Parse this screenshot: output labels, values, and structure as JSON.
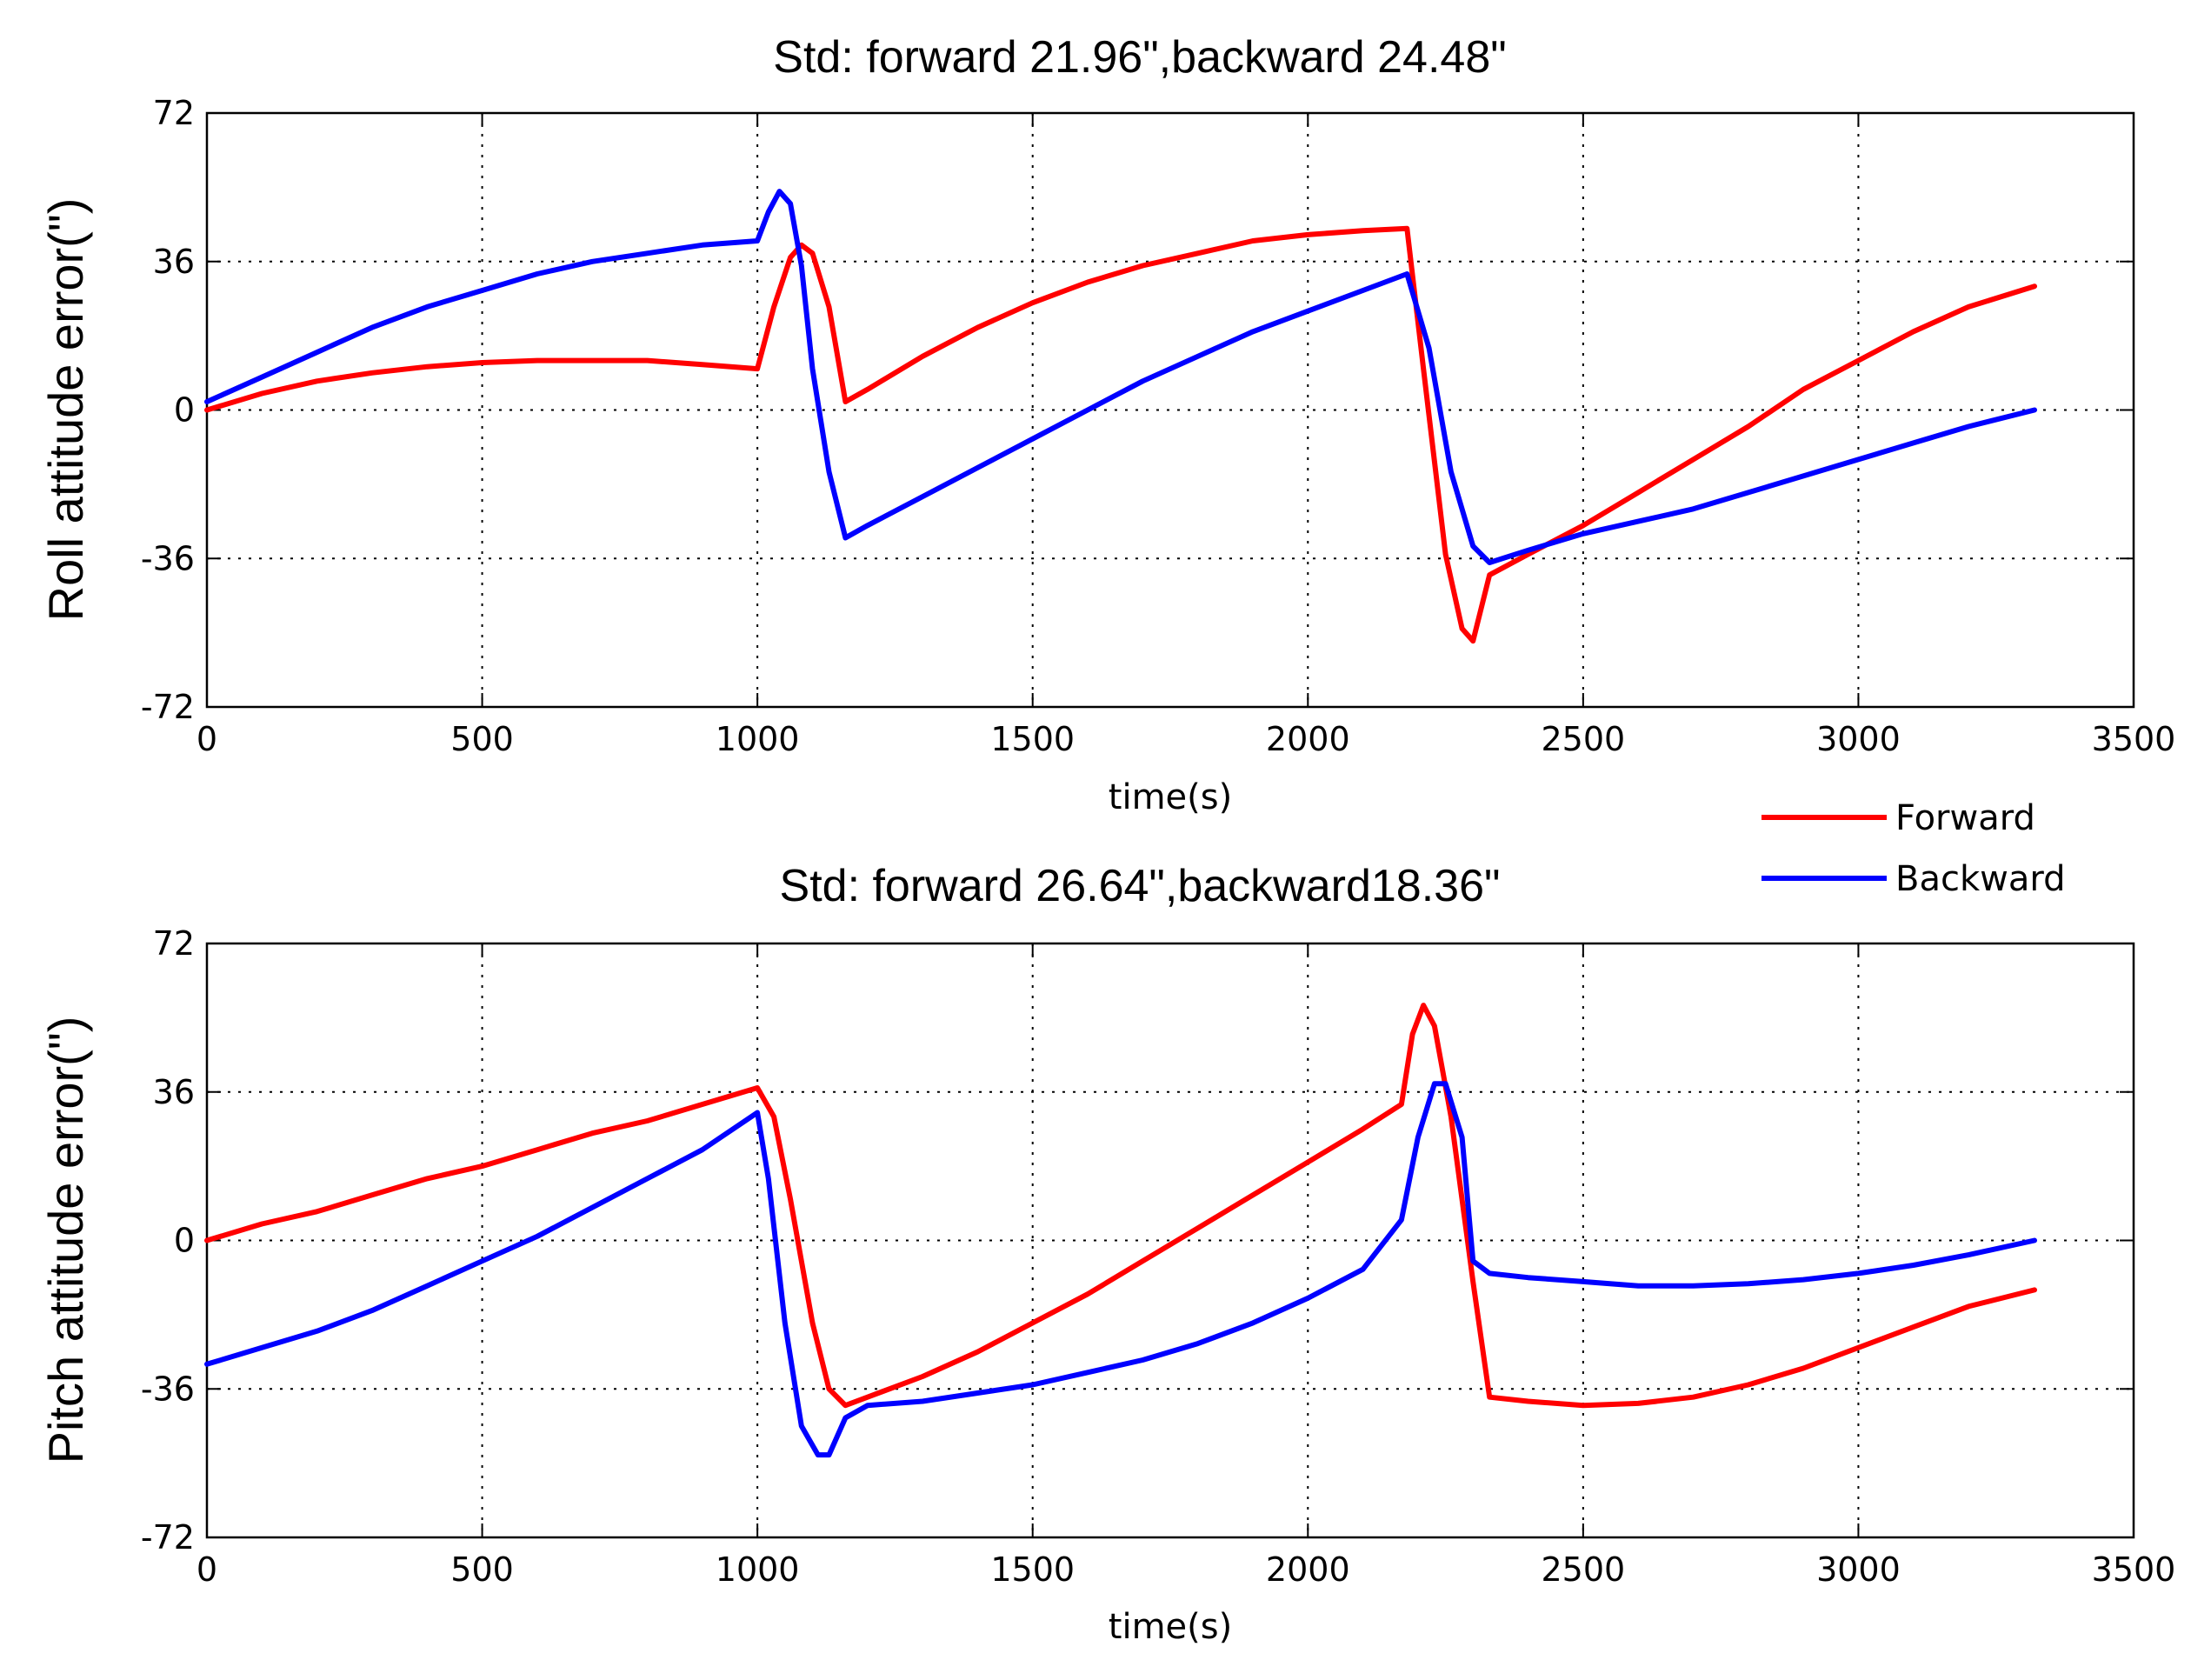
{
  "chart_data": [
    {
      "type": "line",
      "title": "Std: forward 21.96\",backward 24.48\"",
      "xlabel": "time(s)",
      "ylabel": "Roll attitude error(\")",
      "xlim": [
        0,
        3500
      ],
      "ylim": [
        -72,
        72
      ],
      "xticks": [
        "0",
        "500",
        "1000",
        "1500",
        "2000",
        "2500",
        "3000",
        "3500"
      ],
      "yticks": [
        "72",
        "36",
        "0",
        "-36",
        "-72"
      ],
      "grid": true,
      "series": [
        {
          "name": "Forward",
          "color": "#ff0000",
          "x": [
            0,
            100,
            200,
            300,
            400,
            500,
            600,
            700,
            800,
            900,
            1000,
            1030,
            1060,
            1080,
            1100,
            1130,
            1160,
            1200,
            1300,
            1400,
            1500,
            1600,
            1700,
            1800,
            1900,
            2000,
            2100,
            2180,
            2210,
            2250,
            2280,
            2300,
            2330,
            2400,
            2500,
            2600,
            2700,
            2800,
            2900,
            3000,
            3100,
            3200,
            3320
          ],
          "y": [
            0,
            4,
            7,
            9,
            10.5,
            11.5,
            12,
            12,
            12,
            11,
            10,
            25,
            37,
            40,
            38,
            25,
            2,
            5,
            13,
            20,
            26,
            31,
            35,
            38,
            41,
            42.5,
            43.5,
            44,
            10,
            -35,
            -53,
            -56,
            -40,
            -35,
            -28,
            -20,
            -12,
            -4,
            5,
            12,
            19,
            25,
            30
          ]
        },
        {
          "name": "Backward",
          "color": "#0000ff",
          "x": [
            0,
            100,
            200,
            300,
            400,
            500,
            600,
            700,
            800,
            900,
            1000,
            1020,
            1040,
            1060,
            1080,
            1100,
            1130,
            1160,
            1200,
            1300,
            1400,
            1500,
            1600,
            1700,
            1800,
            1900,
            2000,
            2100,
            2180,
            2220,
            2260,
            2300,
            2330,
            2400,
            2500,
            2600,
            2700,
            2800,
            2900,
            3000,
            3100,
            3200,
            3320
          ],
          "y": [
            2,
            8,
            14,
            20,
            25,
            29,
            33,
            36,
            38,
            40,
            41,
            48,
            53,
            50,
            35,
            10,
            -15,
            -31,
            -28,
            -21,
            -14,
            -7,
            0,
            7,
            13,
            19,
            24,
            29,
            33,
            15,
            -15,
            -33,
            -37,
            -34,
            -30,
            -27,
            -24,
            -20,
            -16,
            -12,
            -8,
            -4,
            0
          ]
        }
      ]
    },
    {
      "type": "line",
      "title": "Std: forward 26.64\",backward18.36\"",
      "xlabel": "time(s)",
      "ylabel": "Pitch attitude error(\")",
      "xlim": [
        0,
        3500
      ],
      "ylim": [
        -72,
        72
      ],
      "xticks": [
        "0",
        "500",
        "1000",
        "1500",
        "2000",
        "2500",
        "3000",
        "3500"
      ],
      "yticks": [
        "72",
        "36",
        "0",
        "-36",
        "-72"
      ],
      "grid": true,
      "series": [
        {
          "name": "Forward",
          "color": "#ff0000",
          "x": [
            0,
            100,
            200,
            300,
            400,
            500,
            600,
            700,
            800,
            900,
            1000,
            1030,
            1060,
            1100,
            1130,
            1160,
            1200,
            1300,
            1400,
            1500,
            1600,
            1700,
            1800,
            1900,
            2000,
            2100,
            2170,
            2190,
            2210,
            2230,
            2260,
            2300,
            2330,
            2400,
            2500,
            2600,
            2700,
            2800,
            2900,
            3000,
            3100,
            3200,
            3320
          ],
          "y": [
            0,
            4,
            7,
            11,
            15,
            18,
            22,
            26,
            29,
            33,
            37,
            30,
            10,
            -20,
            -36,
            -40,
            -38,
            -33,
            -27,
            -20,
            -13,
            -5,
            3,
            11,
            19,
            27,
            33,
            50,
            57,
            52,
            30,
            -10,
            -38,
            -39,
            -40,
            -39.5,
            -38,
            -35,
            -31,
            -26,
            -21,
            -16,
            -12
          ]
        },
        {
          "name": "Backward",
          "color": "#0000ff",
          "x": [
            0,
            100,
            200,
            300,
            400,
            500,
            600,
            700,
            800,
            900,
            1000,
            1020,
            1050,
            1080,
            1110,
            1130,
            1160,
            1200,
            1300,
            1400,
            1500,
            1600,
            1700,
            1800,
            1900,
            2000,
            2100,
            2170,
            2200,
            2230,
            2250,
            2280,
            2300,
            2330,
            2400,
            2500,
            2600,
            2700,
            2800,
            2900,
            3000,
            3100,
            3200,
            3320
          ],
          "y": [
            -30,
            -26,
            -22,
            -17,
            -11,
            -5,
            1,
            8,
            15,
            22,
            31,
            15,
            -20,
            -45,
            -52,
            -52,
            -43,
            -40,
            -39,
            -37,
            -35,
            -32,
            -29,
            -25,
            -20,
            -14,
            -7,
            5,
            25,
            38,
            38,
            25,
            -5,
            -8,
            -9,
            -10,
            -11,
            -11,
            -10.5,
            -9.5,
            -8,
            -6,
            -3.5,
            0
          ]
        }
      ]
    }
  ],
  "legend": [
    {
      "label": "Forward",
      "color": "#ff0000"
    },
    {
      "label": "Backward",
      "color": "#0000ff"
    }
  ]
}
